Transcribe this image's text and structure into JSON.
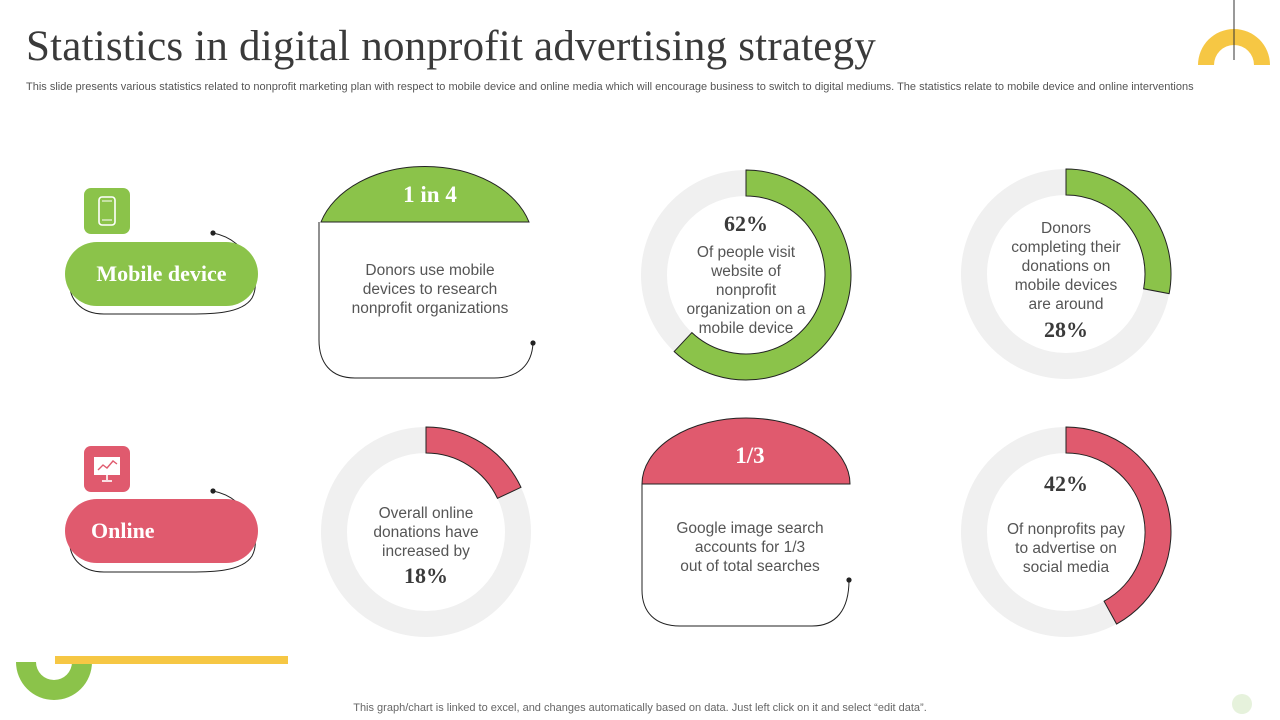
{
  "header": {
    "title": "Statistics in digital nonprofit advertising strategy",
    "subtitle": "This slide presents various statistics related to nonprofit marketing plan with respect to mobile device and online media which will encourage business to switch to digital mediums. The statistics relate to mobile device and online interventions"
  },
  "categories": {
    "mobile": {
      "label": "Mobile device",
      "icon": "mobile-phone-icon"
    },
    "online": {
      "label": "Online",
      "icon": "presentation-board-icon"
    }
  },
  "stats": {
    "mobile_1": {
      "headline": "1 in 4",
      "text_lines": [
        "Donors use mobile",
        "devices to research",
        "nonprofit organizations"
      ]
    },
    "mobile_2": {
      "value": "62%",
      "percent": 62,
      "text_lines": [
        "Of people visit",
        "website of",
        "nonprofit",
        "organization on a",
        "mobile device"
      ]
    },
    "mobile_3": {
      "value": "28%",
      "percent": 28,
      "text_lines": [
        "Donors",
        "completing their",
        "donations on",
        "mobile devices",
        "are around"
      ]
    },
    "online_1": {
      "value": "18%",
      "percent": 18,
      "text_lines": [
        "Overall online",
        "donations have",
        "increased by"
      ]
    },
    "online_2": {
      "headline": "1/3",
      "text_lines": [
        "Google image search",
        "accounts for 1/3",
        "out of total searches"
      ]
    },
    "online_3": {
      "value": "42%",
      "percent": 42,
      "text_lines": [
        "Of nonprofits pay",
        "to advertise on",
        "social media"
      ]
    }
  },
  "footer": {
    "note": "This graph/chart is linked to excel,  and changes automatically based on data. Just left click on it and select “edit data”."
  },
  "colors": {
    "green": "#8bc34a",
    "red": "#e05a6e",
    "yellow": "#f6c744",
    "track": "#f0f0f0"
  }
}
